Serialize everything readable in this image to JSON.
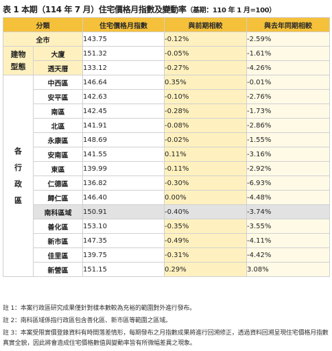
{
  "title": "表 1 本期（114 年 7 月）住宅價格月指數及變動率",
  "title_base": "（基期：110 年 1 月=100）",
  "headers": [
    "分類",
    "住宅價格月指數",
    "與前期相較",
    "與去年同期相較"
  ],
  "overall": {
    "name": "全市",
    "index": "143.75",
    "mom": "-0.12%",
    "yoy": "-2.59%"
  },
  "building_group": {
    "label_line1": "建物",
    "label_line2": "型態",
    "rows": [
      {
        "name": "大廈",
        "index": "151.32",
        "mom": "-0.05%",
        "yoy": "-1.61%"
      },
      {
        "name": "透天厝",
        "index": "133.12",
        "mom": "-0.27%",
        "yoy": "-4.26%"
      }
    ]
  },
  "district_group": {
    "label_chars": [
      "各",
      "行",
      "政",
      "區"
    ],
    "rows": [
      {
        "name": "中西區",
        "index": "146.64",
        "mom": "0.35%",
        "yoy": "-0.01%"
      },
      {
        "name": "安平區",
        "index": "142.63",
        "mom": "-0.10%",
        "yoy": "-2.76%"
      },
      {
        "name": "南區",
        "index": "142.45",
        "mom": "-0.28%",
        "yoy": "-1.73%"
      },
      {
        "name": "北區",
        "index": "141.91",
        "mom": "-0.08%",
        "yoy": "-2.86%"
      },
      {
        "name": "永康區",
        "index": "148.69",
        "mom": "-0.02%",
        "yoy": "-1.55%"
      },
      {
        "name": "安南區",
        "index": "141.55",
        "mom": "0.11%",
        "yoy": "-3.16%"
      },
      {
        "name": "東區",
        "index": "139.99",
        "mom": "-0.11%",
        "yoy": "-2.92%"
      },
      {
        "name": "仁德區",
        "index": "136.82",
        "mom": "-0.30%",
        "yoy": "-6.93%"
      },
      {
        "name": "歸仁區",
        "index": "146.40",
        "mom": "0.00%",
        "yoy": "-4.48%"
      },
      {
        "name": "南科區域",
        "index": "150.91",
        "mom": "-0.40%",
        "yoy": "-3.74%"
      },
      {
        "name": "善化區",
        "index": "153.10",
        "mom": "-0.35%",
        "yoy": "-3.55%"
      },
      {
        "name": "新市區",
        "index": "147.35",
        "mom": "-0.49%",
        "yoy": "-4.11%"
      },
      {
        "name": "佳里區",
        "index": "139.75",
        "mom": "-0.31%",
        "yoy": "-4.42%"
      },
      {
        "name": "新營區",
        "index": "151.15",
        "mom": "0.29%",
        "yoy": "3.08%"
      }
    ]
  },
  "notes": [
    "註 1：本案行政區研究成果僅針對樣本數較為充裕的範圍對外進行發布。",
    "註 2：南科區域係指行政區包含善化區、新市區等範圍之區域。",
    "註 3：本案受限實價登錄資料有時間落差情形，每期發布之月指數成果將進行回溯修正，透過資料回溯呈現住宅價格月指數真實全貌，因此將會造成住宅價格數值與變動率皆有所微幅差異之現象。"
  ],
  "colors": {
    "header": "#f5c13a",
    "highlight": "#fff1bf",
    "pale": "#fffae6",
    "gray_row": "#e2e2e2"
  }
}
